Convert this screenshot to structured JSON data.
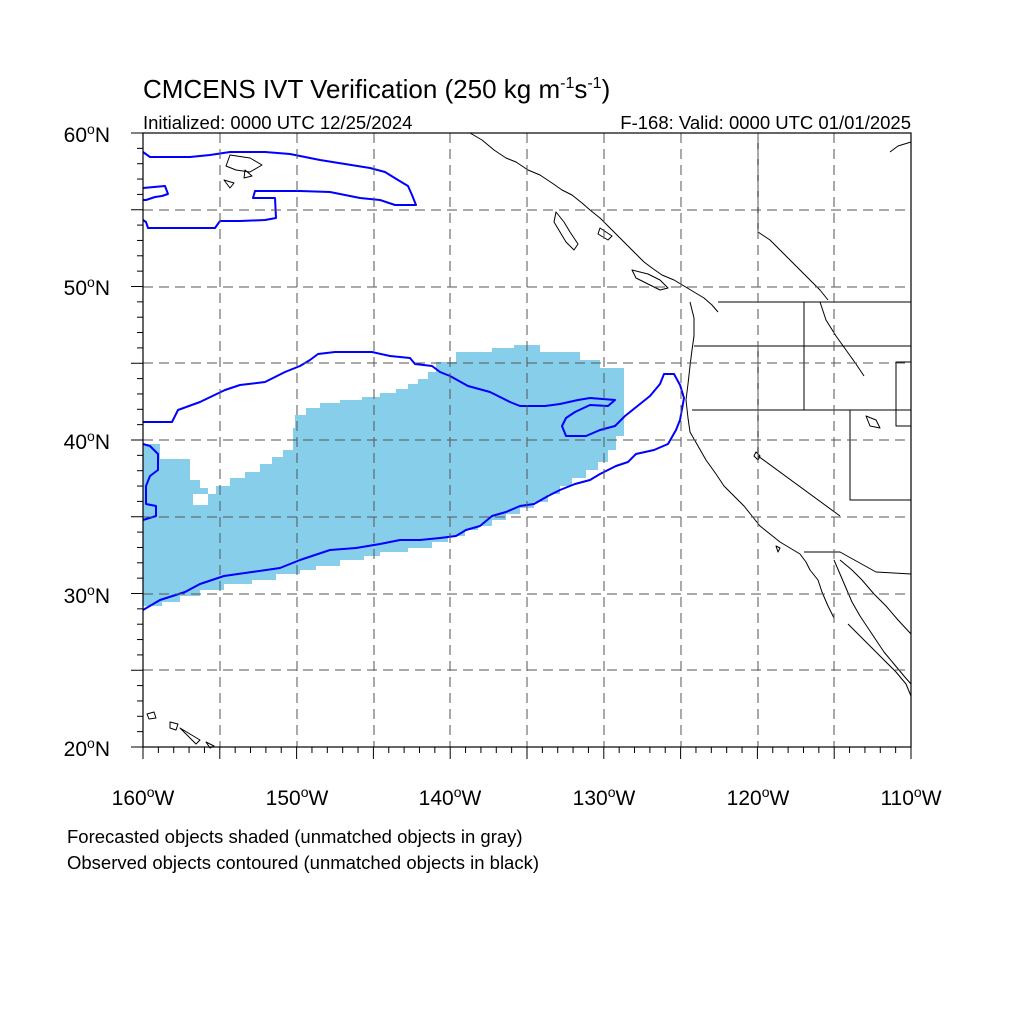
{
  "title": {
    "main": "CMCENS IVT Verification (250 kg m",
    "sup1": "-1",
    "mid": "s",
    "sup2": "-1",
    "end": ")"
  },
  "initialized": "Initialized: 0000 UTC 12/25/2024",
  "valid": "F-168: Valid: 0000 UTC 01/01/2025",
  "lat_labels": [
    {
      "deg": "60",
      "suffix": "N"
    },
    {
      "deg": "50",
      "suffix": "N"
    },
    {
      "deg": "40",
      "suffix": "N"
    },
    {
      "deg": "30",
      "suffix": "N"
    },
    {
      "deg": "20",
      "suffix": "N"
    }
  ],
  "lon_labels": [
    {
      "deg": "160",
      "suffix": "W"
    },
    {
      "deg": "150",
      "suffix": "W"
    },
    {
      "deg": "140",
      "suffix": "W"
    },
    {
      "deg": "130",
      "suffix": "W"
    },
    {
      "deg": "120",
      "suffix": "W"
    },
    {
      "deg": "110",
      "suffix": "W"
    }
  ],
  "legend": {
    "forecast": "Forecasted objects shaded (unmatched objects in gray)",
    "observed": "Observed objects contoured (unmatched objects in black)"
  },
  "colors": {
    "forecast_fill": "#87ceeb",
    "observed_contour": "#0000ff",
    "coastline": "#000000",
    "grid": "#555555"
  },
  "map_extent": {
    "lon_min": -160,
    "lon_max": -110,
    "lat_min": 20,
    "lat_max": 60
  }
}
